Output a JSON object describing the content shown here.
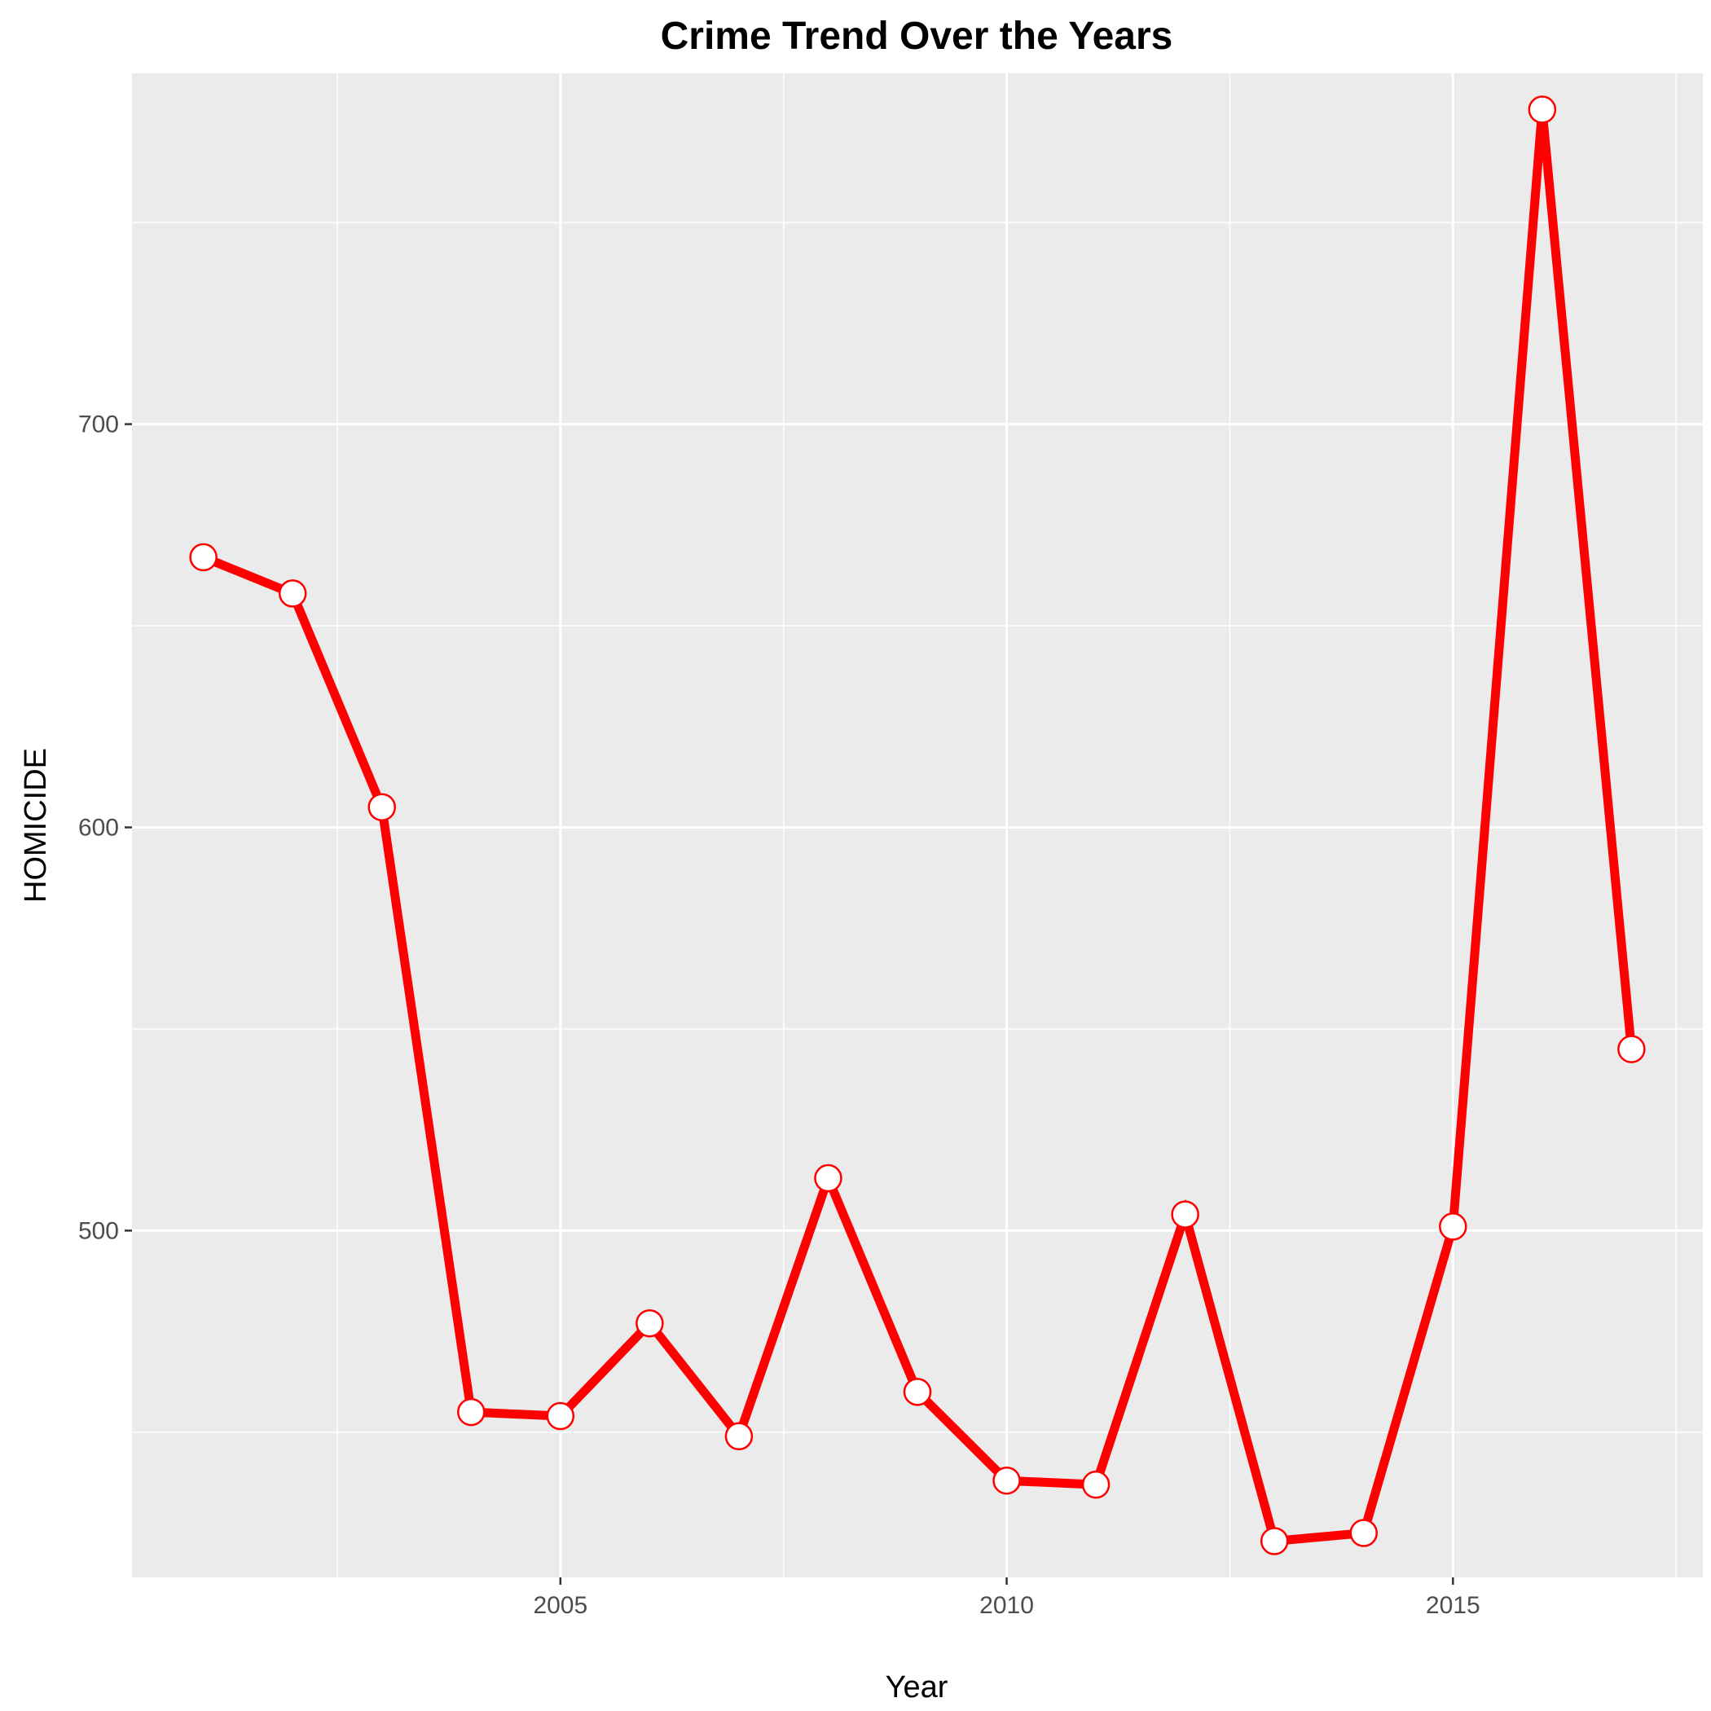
{
  "chart_data": {
    "type": "line",
    "title": "Crime Trend Over the Years",
    "xlabel": "Year",
    "ylabel": "HOMICIDE",
    "x": [
      2001,
      2002,
      2003,
      2004,
      2005,
      2006,
      2007,
      2008,
      2009,
      2010,
      2011,
      2012,
      2013,
      2014,
      2015,
      2016,
      2017
    ],
    "series": [
      {
        "values": [
          667,
          658,
          605,
          455,
          454,
          477,
          449,
          513,
          460,
          438,
          437,
          504,
          423,
          425,
          501,
          778,
          545
        ],
        "color": "#ff0000"
      }
    ],
    "xlim": [
      2000.2,
      2017.8
    ],
    "ylim": [
      414,
      787
    ],
    "x_ticks": [
      2005,
      2010,
      2015
    ],
    "y_ticks": [
      500,
      600,
      700
    ],
    "grid": true,
    "panel_color": "#ebebeb",
    "point_fill": "#ffffff",
    "point_edge": "#ff0000"
  }
}
